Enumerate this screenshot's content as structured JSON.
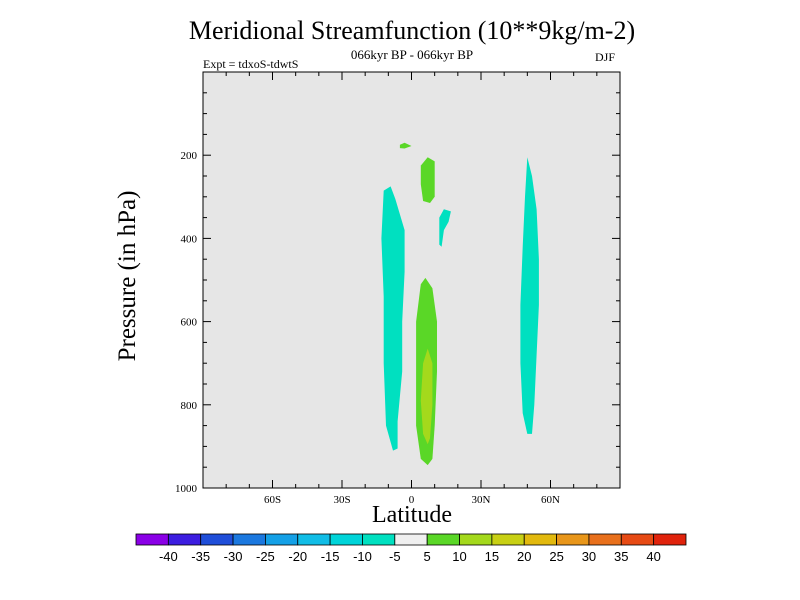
{
  "chart_data": {
    "type": "contour",
    "title": "Meridional Streamfunction (10**9kg/m-2)",
    "subtitle": "066kyr BP - 066kyr BP",
    "expt": "Expt = tdxoS-tdwtS",
    "season": "DJF",
    "xlabel": "Latitude",
    "ylabel": "Pressure (in hPa)",
    "xlim": [
      -90,
      90
    ],
    "ylim": [
      1000,
      0
    ],
    "x_ticks": [
      {
        "value": -60,
        "label": "60S"
      },
      {
        "value": -30,
        "label": "30S"
      },
      {
        "value": 0,
        "label": "0"
      },
      {
        "value": 30,
        "label": "30N"
      },
      {
        "value": 60,
        "label": "60N"
      }
    ],
    "y_ticks": [
      {
        "value": 200,
        "label": "200"
      },
      {
        "value": 400,
        "label": "400"
      },
      {
        "value": 600,
        "label": "600"
      },
      {
        "value": 800,
        "label": "800"
      },
      {
        "value": 1000,
        "label": "1000"
      }
    ],
    "background_color": "#e6e6e6",
    "regions": [
      {
        "name": "sh-tropics-negative",
        "level": "-10 to -5",
        "color": "#00e0c0",
        "points": [
          [
            -12,
            285
          ],
          [
            -9,
            275
          ],
          [
            -7,
            305
          ],
          [
            -3,
            380
          ],
          [
            -3,
            480
          ],
          [
            -4,
            600
          ],
          [
            -4,
            720
          ],
          [
            -6,
            840
          ],
          [
            -6,
            905
          ],
          [
            -8,
            910
          ],
          [
            -11,
            850
          ],
          [
            -12,
            700
          ],
          [
            -12,
            540
          ],
          [
            -13,
            400
          ]
        ]
      },
      {
        "name": "nh-upper-small-negative",
        "level": "-10 to -5",
        "color": "#00e0c0",
        "points": [
          [
            12,
            385
          ],
          [
            12,
            350
          ],
          [
            14,
            330
          ],
          [
            17,
            335
          ],
          [
            16,
            360
          ],
          [
            14,
            380
          ],
          [
            13,
            420
          ],
          [
            12,
            415
          ]
        ]
      },
      {
        "name": "nh-midlat-negative",
        "level": "-10 to -5",
        "color": "#00e0c0",
        "points": [
          [
            50,
            205
          ],
          [
            52,
            250
          ],
          [
            54,
            330
          ],
          [
            55,
            450
          ],
          [
            55,
            560
          ],
          [
            54,
            680
          ],
          [
            53,
            800
          ],
          [
            52,
            870
          ],
          [
            50,
            870
          ],
          [
            48,
            820
          ],
          [
            47,
            700
          ],
          [
            47,
            560
          ],
          [
            48,
            420
          ],
          [
            49,
            300
          ]
        ]
      },
      {
        "name": "tiny-upper-positive",
        "level": "5 to 10",
        "color": "#5ad727",
        "points": [
          [
            -5,
            175
          ],
          [
            -3,
            170
          ],
          [
            0,
            178
          ],
          [
            -3,
            184
          ],
          [
            -5,
            183
          ]
        ]
      },
      {
        "name": "upper-positive",
        "level": "5 to 10",
        "color": "#5ad727",
        "points": [
          [
            4,
            225
          ],
          [
            7,
            205
          ],
          [
            10,
            215
          ],
          [
            10,
            260
          ],
          [
            10,
            300
          ],
          [
            8,
            315
          ],
          [
            5,
            310
          ],
          [
            4,
            270
          ]
        ]
      },
      {
        "name": "lower-positive",
        "level": "5 to 10",
        "color": "#5ad727",
        "points": [
          [
            4,
            510
          ],
          [
            6,
            495
          ],
          [
            9,
            520
          ],
          [
            11,
            600
          ],
          [
            11,
            720
          ],
          [
            10,
            850
          ],
          [
            9,
            930
          ],
          [
            7,
            945
          ],
          [
            4,
            930
          ],
          [
            2,
            850
          ],
          [
            2,
            720
          ],
          [
            2,
            600
          ]
        ]
      },
      {
        "name": "lower-positive-core",
        "level": "10 to 15",
        "color": "#a4d91c",
        "points": [
          [
            5,
            700
          ],
          [
            7,
            665
          ],
          [
            9,
            700
          ],
          [
            9,
            800
          ],
          [
            8,
            880
          ],
          [
            7,
            895
          ],
          [
            5,
            870
          ],
          [
            4,
            790
          ]
        ]
      }
    ],
    "colorbar": {
      "levels": [
        "-40",
        "-35",
        "-30",
        "-25",
        "-20",
        "-15",
        "-10",
        "-5",
        "5",
        "10",
        "15",
        "20",
        "25",
        "30",
        "35",
        "40"
      ],
      "colors": [
        "#8a00e6",
        "#3c1de0",
        "#1f4ed9",
        "#1b78df",
        "#14a0e6",
        "#11bde6",
        "#00d4d9",
        "#00e0c0",
        "#f0f0f0",
        "#5ad727",
        "#a4d91c",
        "#c8d014",
        "#e2b90e",
        "#e8961a",
        "#e8701c",
        "#e64a14",
        "#e0230c"
      ]
    }
  }
}
